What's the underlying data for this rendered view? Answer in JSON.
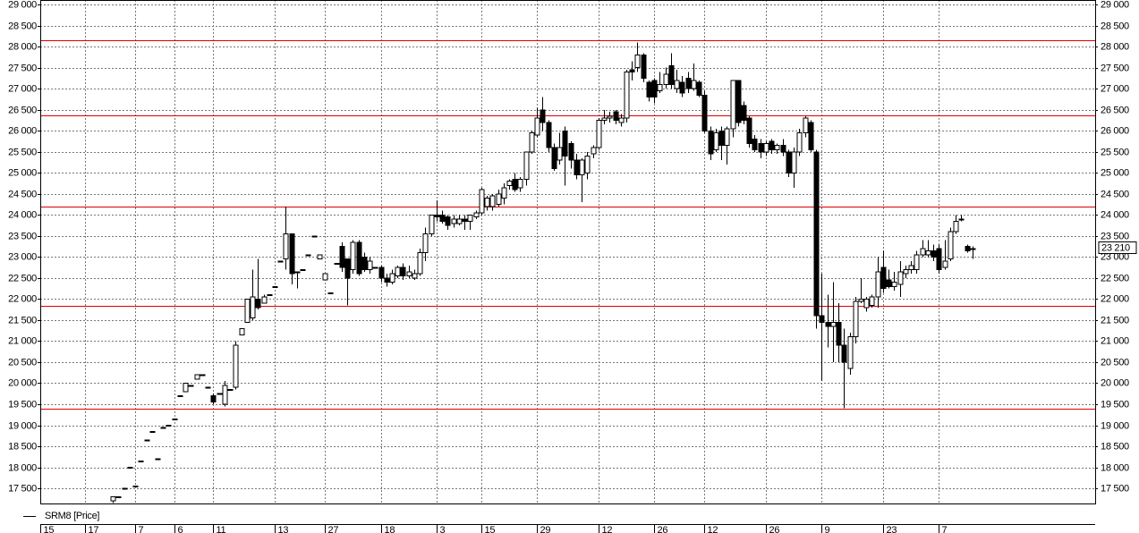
{
  "chart_data": {
    "type": "candlestick",
    "series": [
      {
        "name": "SRM8 [Price]",
        "up_color": "#ffffff",
        "down_color": "#000000",
        "color": "#000000",
        "x": [
          12,
          13,
          14,
          15,
          16,
          17,
          18,
          19,
          20,
          21,
          22,
          23,
          24,
          25,
          26,
          27,
          28,
          29,
          30,
          31,
          32,
          33,
          34,
          35,
          36,
          37,
          38,
          39,
          40,
          41,
          42,
          43,
          44,
          45,
          46,
          47,
          48,
          49,
          50,
          51,
          52,
          53,
          54,
          55,
          56,
          57,
          58,
          59,
          60,
          61,
          62,
          63,
          64,
          65,
          66,
          67,
          68,
          69,
          70,
          71,
          72,
          73,
          74,
          75,
          76,
          77,
          78,
          79,
          80,
          81,
          82,
          83,
          84,
          85,
          86,
          87,
          88,
          89,
          90,
          91,
          92,
          93,
          94,
          95,
          96,
          97,
          98,
          99,
          100,
          101,
          102,
          103,
          104,
          105,
          106,
          107,
          108,
          109,
          110,
          111,
          112,
          113,
          114,
          115,
          116,
          117,
          118,
          119,
          120,
          121,
          122,
          123,
          124,
          125,
          126,
          127,
          128,
          129,
          130,
          131,
          132,
          133,
          134,
          135,
          136,
          137,
          138,
          139,
          140,
          141,
          142,
          143,
          144,
          145,
          146,
          147,
          148,
          149,
          150,
          151,
          152,
          153,
          154,
          155,
          156,
          157,
          158,
          159,
          160,
          161,
          162,
          163,
          164,
          165,
          166
        ],
        "open": [
          17200,
          17300,
          17500,
          18000,
          17550,
          18150,
          18650,
          18850,
          18200,
          18950,
          19000,
          19150,
          19700,
          19800,
          19950,
          20100,
          20200,
          19900,
          19700,
          19750,
          19500,
          19850,
          19900,
          21150,
          21450,
          21550,
          22000,
          21900,
          22100,
          22300,
          22900,
          22950,
          23550,
          22650,
          22700,
          23050,
          23500,
          22950,
          22450,
          22150,
          22850,
          23250,
          22950,
          22700,
          23350,
          23000,
          22700,
          22750,
          22750,
          22500,
          22400,
          22550,
          22750,
          22550,
          22500,
          22600,
          23100,
          23550,
          24000,
          24000,
          23950,
          23800,
          23800,
          23900,
          23850,
          23950,
          24050,
          24200,
          24200,
          24250,
          24400,
          24700,
          24850,
          24650,
          24850,
          25500,
          25900,
          26500,
          26200,
          25600,
          25300,
          26000,
          25700,
          25300,
          24950,
          25000,
          25450,
          25600,
          26250,
          26300,
          26450,
          26200,
          26300,
          27450,
          27500,
          27800,
          27150,
          27200,
          26950,
          27100,
          27550,
          27000,
          27150,
          27250,
          27000,
          27150,
          26850,
          26000,
          25550,
          26000,
          25650,
          26050,
          27200,
          26600,
          26300,
          25800,
          25700,
          25500,
          25750,
          25550,
          25650,
          25500,
          25000,
          25500,
          25950,
          26200,
          25500,
          21600,
          21450,
          21350,
          21450,
          20900,
          20350,
          21100,
          21950,
          21800,
          21850,
          22050,
          22750,
          22450,
          22300,
          22350,
          22600,
          22700,
          22700,
          23050,
          23050,
          23150,
          23200,
          22750,
          22950,
          23600,
          23900,
          23250,
          23200
        ],
        "high": [
          17300,
          17300,
          17500,
          18000,
          17550,
          18150,
          18650,
          18850,
          18200,
          18950,
          19000,
          19150,
          19700,
          20000,
          19950,
          20200,
          20200,
          19900,
          19750,
          19750,
          20050,
          19850,
          21000,
          21300,
          22000,
          22700,
          22950,
          22100,
          22100,
          22300,
          22900,
          24200,
          23550,
          22650,
          22700,
          23050,
          23500,
          23050,
          22600,
          22150,
          22850,
          23350,
          22950,
          23400,
          23400,
          23100,
          23000,
          22750,
          22800,
          22600,
          22700,
          22800,
          22850,
          22800,
          22700,
          23200,
          23700,
          24000,
          24350,
          24100,
          24000,
          24000,
          24000,
          24000,
          24000,
          24100,
          24650,
          24450,
          24500,
          24600,
          24750,
          24850,
          25000,
          24900,
          25500,
          26000,
          26550,
          26800,
          26250,
          25700,
          25950,
          26100,
          25750,
          25450,
          25350,
          25500,
          25650,
          26300,
          26500,
          26450,
          26500,
          26400,
          27450,
          27650,
          28100,
          27850,
          27200,
          27250,
          27400,
          27500,
          27850,
          27450,
          27300,
          27400,
          27600,
          27200,
          26950,
          26100,
          26050,
          26100,
          26100,
          27200,
          27200,
          26700,
          26350,
          25900,
          25800,
          25750,
          25800,
          25700,
          25800,
          25550,
          25600,
          26050,
          26350,
          26250,
          25550,
          22600,
          22100,
          22400,
          21900,
          21300,
          21200,
          22050,
          22500,
          22050,
          22100,
          23000,
          23150,
          22700,
          22650,
          22900,
          22800,
          22900,
          23150,
          23400,
          23400,
          23300,
          23300,
          23400,
          23700,
          24000,
          24000,
          23300,
          23250
        ],
        "low": [
          17150,
          17300,
          17500,
          18000,
          17550,
          18150,
          18650,
          18850,
          18200,
          18950,
          19000,
          19150,
          19700,
          19800,
          19950,
          20100,
          20200,
          19900,
          19500,
          19750,
          19450,
          19850,
          19850,
          21150,
          21450,
          21500,
          21750,
          21900,
          22100,
          22300,
          22900,
          22700,
          22350,
          22250,
          22700,
          23050,
          23500,
          22950,
          22450,
          22150,
          22850,
          22650,
          21850,
          22600,
          22550,
          22650,
          22600,
          22750,
          22400,
          22300,
          22350,
          22500,
          22450,
          22500,
          22450,
          22550,
          22900,
          23500,
          23850,
          23800,
          23650,
          23700,
          23750,
          23650,
          23650,
          23900,
          24000,
          24100,
          24100,
          24200,
          24250,
          24600,
          24550,
          24550,
          24700,
          25450,
          25850,
          26000,
          25500,
          25050,
          25200,
          24700,
          25100,
          24850,
          24300,
          24850,
          25350,
          25550,
          26150,
          26200,
          26150,
          26100,
          26200,
          27200,
          27400,
          27150,
          26700,
          26650,
          26900,
          27000,
          27000,
          26900,
          26800,
          26900,
          26950,
          26800,
          25950,
          25300,
          25500,
          25300,
          25200,
          25850,
          26100,
          26150,
          25600,
          25500,
          25350,
          25400,
          25450,
          25450,
          25400,
          24900,
          24650,
          25400,
          25850,
          25500,
          21300,
          20050,
          20850,
          20500,
          20500,
          19400,
          20200,
          20950,
          21900,
          21700,
          21800,
          21800,
          22150,
          22250,
          22200,
          22050,
          22500,
          22600,
          22600,
          23000,
          23000,
          22900,
          22600,
          22700,
          22900,
          23550,
          23850,
          23100,
          22950
        ],
        "close": [
          17300,
          17300,
          17500,
          18000,
          17550,
          18150,
          18650,
          18850,
          18200,
          18950,
          19000,
          19150,
          19700,
          20000,
          19950,
          20200,
          20200,
          19900,
          19550,
          19750,
          19950,
          19850,
          20900,
          21300,
          22000,
          22050,
          21800,
          22050,
          22100,
          22300,
          22900,
          23550,
          22600,
          22650,
          22700,
          23050,
          23500,
          23050,
          22600,
          22150,
          22850,
          22750,
          22500,
          23350,
          22600,
          22700,
          22900,
          22750,
          22500,
          22400,
          22600,
          22750,
          22550,
          22650,
          22600,
          23100,
          23550,
          24000,
          23950,
          23850,
          23750,
          23900,
          23900,
          23850,
          24000,
          24050,
          24600,
          24400,
          24450,
          24500,
          24650,
          24800,
          24600,
          24850,
          25500,
          25950,
          26300,
          26200,
          25600,
          25100,
          25600,
          25400,
          25300,
          24950,
          25300,
          25400,
          25600,
          26250,
          26300,
          26350,
          26250,
          26300,
          27400,
          27400,
          27800,
          27250,
          26800,
          26800,
          27100,
          27350,
          27100,
          27200,
          26900,
          27000,
          27200,
          26850,
          26000,
          25450,
          25950,
          25650,
          26050,
          27200,
          26200,
          26250,
          25700,
          25550,
          25500,
          25700,
          25550,
          25650,
          25500,
          25000,
          25500,
          25950,
          26300,
          25550,
          21600,
          21450,
          21350,
          21450,
          20900,
          20500,
          21100,
          21950,
          22000,
          22000,
          22050,
          22650,
          22250,
          22300,
          22400,
          22650,
          22700,
          22800,
          23050,
          23200,
          23150,
          23000,
          22700,
          22900,
          23600,
          23850,
          23900,
          23150,
          23200
        ]
      }
    ],
    "xlim": [
      -1,
      188
    ],
    "xticks": [
      {
        "value": -1,
        "label": "15"
      },
      {
        "value": 7,
        "label": "17"
      },
      {
        "value": 16,
        "label": "7"
      },
      {
        "value": 23,
        "label": "6"
      },
      {
        "value": 30,
        "label": "11"
      },
      {
        "value": 41,
        "label": "13"
      },
      {
        "value": 50,
        "label": "27"
      },
      {
        "value": 60,
        "label": "18"
      },
      {
        "value": 70,
        "label": "3"
      },
      {
        "value": 78,
        "label": "15"
      },
      {
        "value": 88,
        "label": "29"
      },
      {
        "value": 99,
        "label": "12"
      },
      {
        "value": 109,
        "label": "26"
      },
      {
        "value": 118,
        "label": "12"
      },
      {
        "value": 129,
        "label": "26"
      },
      {
        "value": 139,
        "label": "9"
      },
      {
        "value": 150,
        "label": "23"
      },
      {
        "value": 160,
        "label": "7"
      }
    ],
    "ylim": [
      17140,
      29110
    ],
    "yticks": [
      {
        "value": 17500,
        "label": "17 500"
      },
      {
        "value": 18000,
        "label": "18 000"
      },
      {
        "value": 18500,
        "label": "18 500"
      },
      {
        "value": 19000,
        "label": "19 000"
      },
      {
        "value": 19500,
        "label": "19 500"
      },
      {
        "value": 20000,
        "label": "20 000"
      },
      {
        "value": 20500,
        "label": "20 500"
      },
      {
        "value": 21000,
        "label": "21 000"
      },
      {
        "value": 21500,
        "label": "21 500"
      },
      {
        "value": 22000,
        "label": "22 000"
      },
      {
        "value": 22500,
        "label": "22 500"
      },
      {
        "value": 23000,
        "label": "23 000"
      },
      {
        "value": 23500,
        "label": "23 500"
      },
      {
        "value": 24000,
        "label": "24 000"
      },
      {
        "value": 24500,
        "label": "24 500"
      },
      {
        "value": 25000,
        "label": "25 000"
      },
      {
        "value": 25500,
        "label": "25 500"
      },
      {
        "value": 26000,
        "label": "26 000"
      },
      {
        "value": 26500,
        "label": "26 500"
      },
      {
        "value": 27000,
        "label": "27 000"
      },
      {
        "value": 27500,
        "label": "27 500"
      },
      {
        "value": 28000,
        "label": "28 000"
      },
      {
        "value": 28500,
        "label": "28 500"
      },
      {
        "value": 29000,
        "label": "29 000"
      }
    ],
    "grid": true,
    "hlines": [
      28150,
      26360,
      24200,
      21840,
      19390
    ],
    "hline_color": "#e00000",
    "last_price": {
      "value": 23210,
      "label": "23 210"
    }
  }
}
